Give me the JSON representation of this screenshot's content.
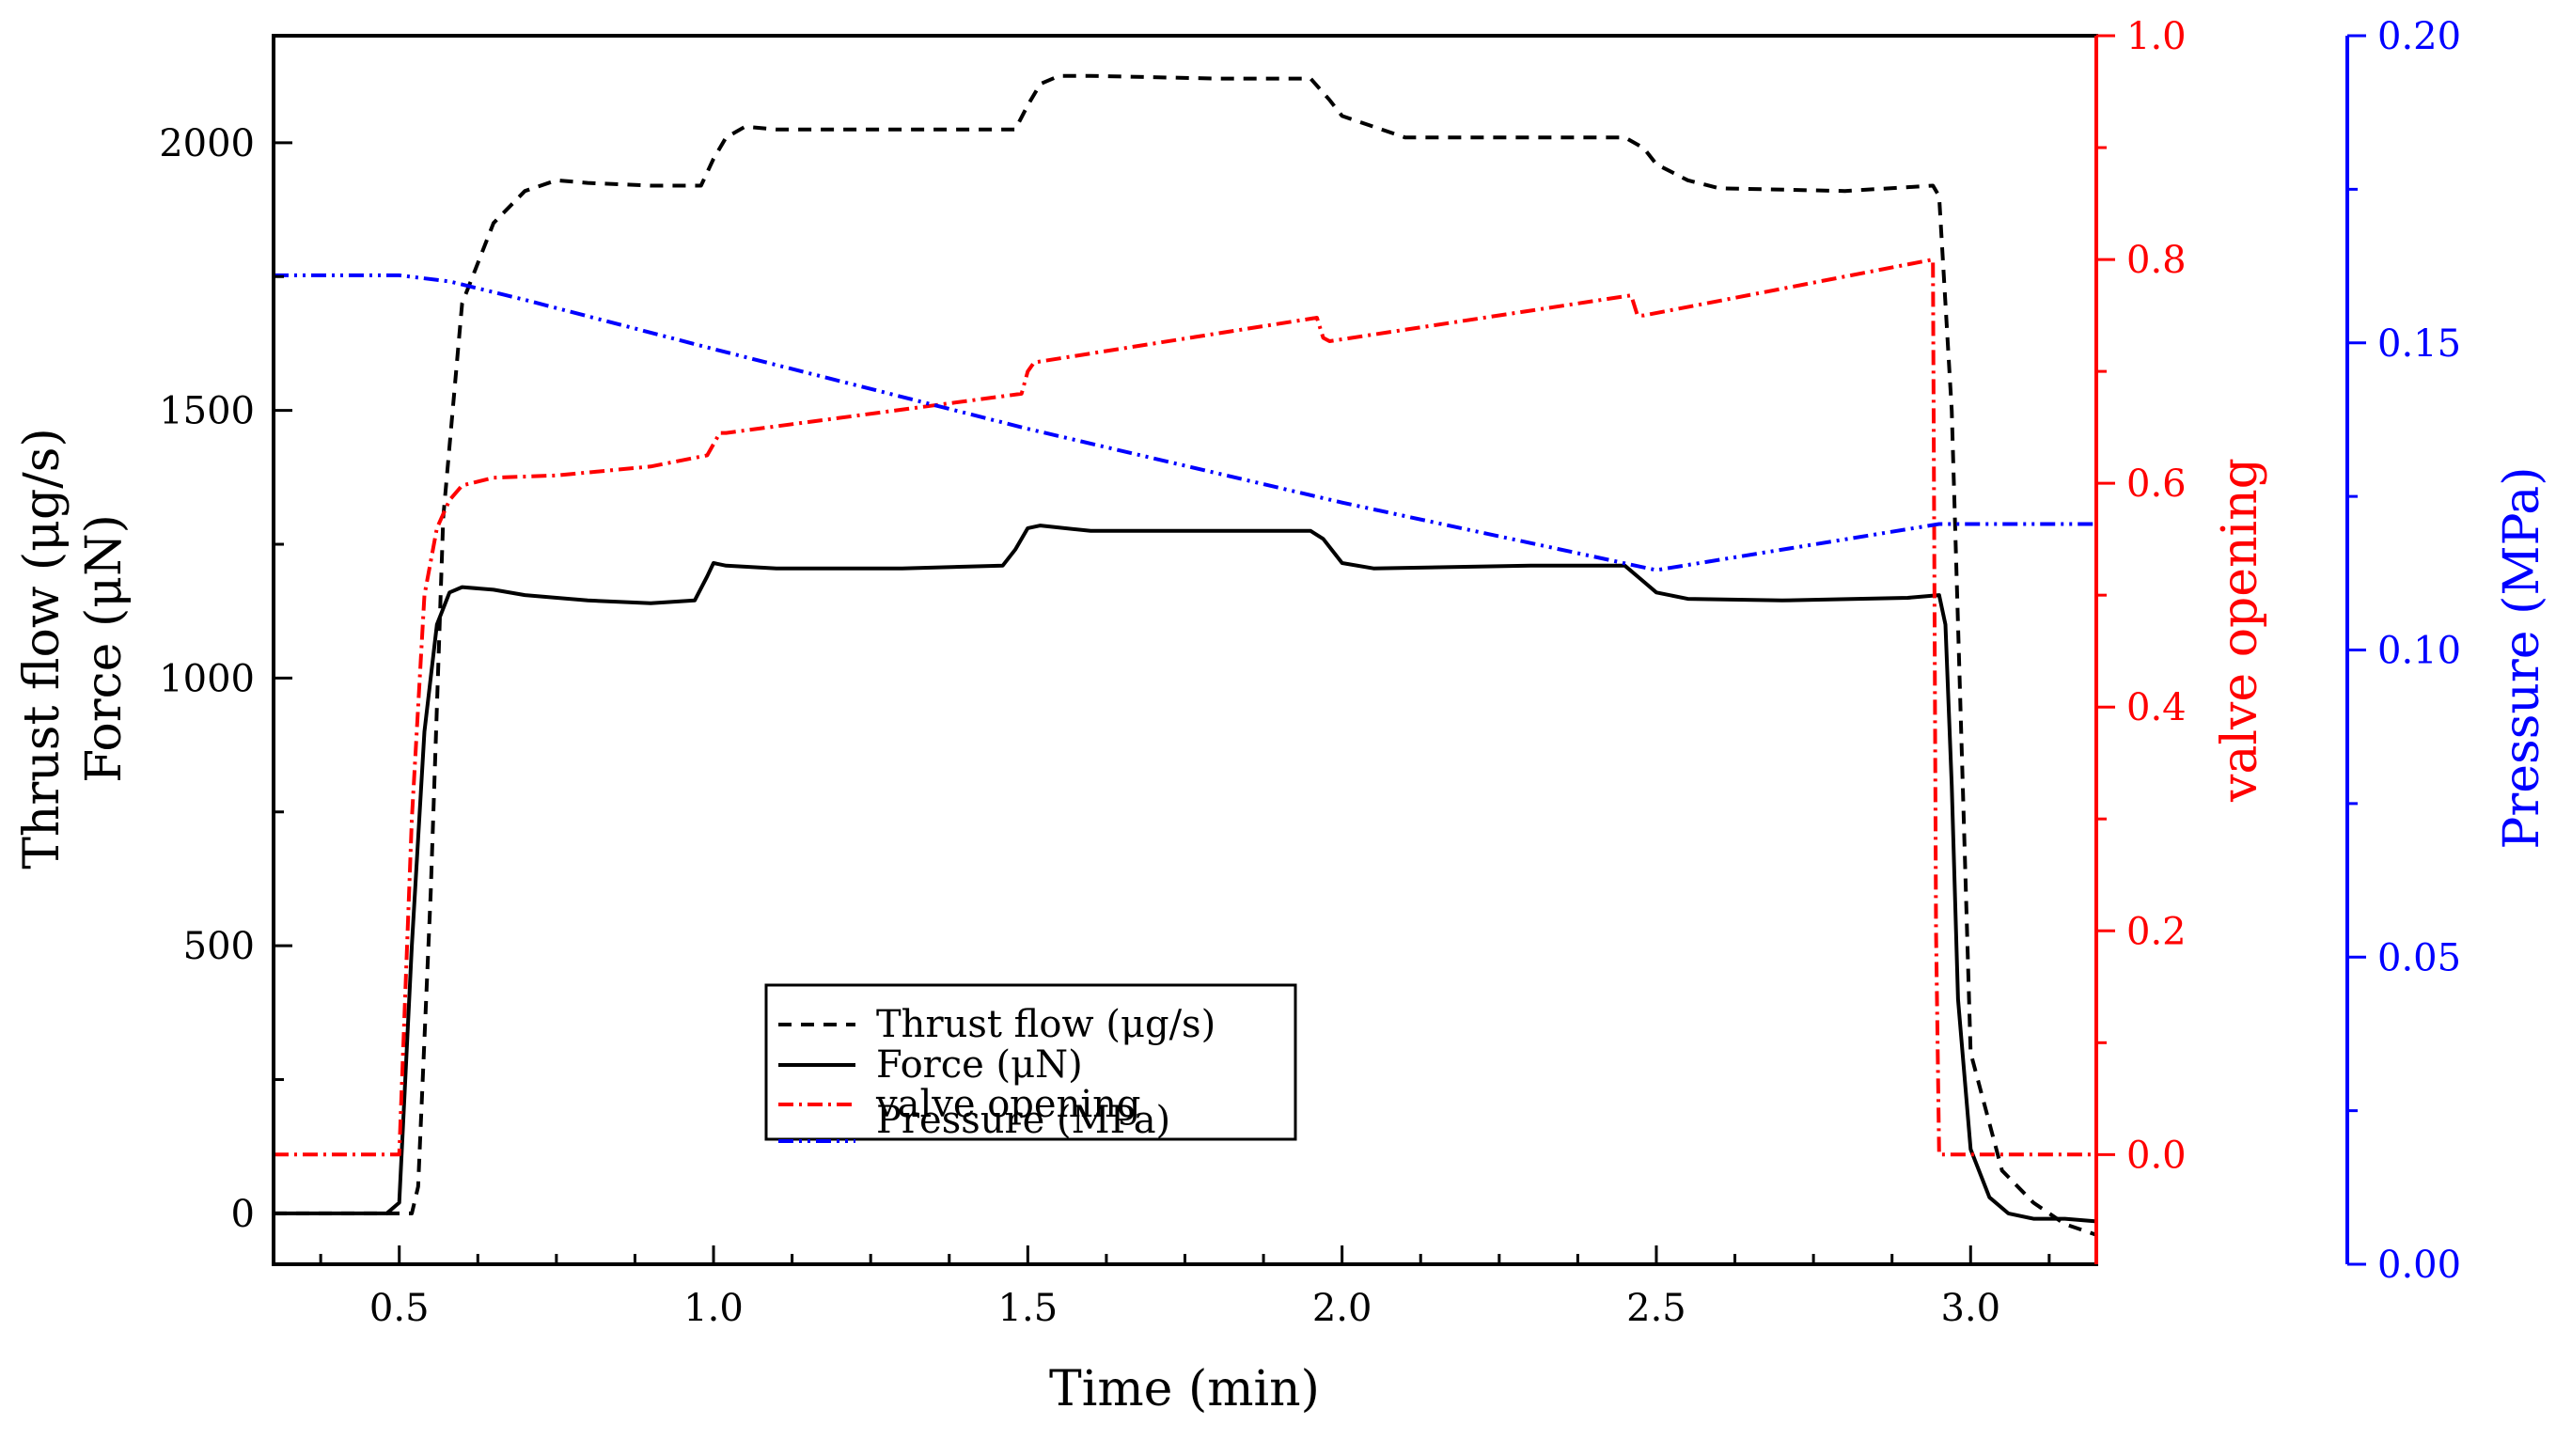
{
  "chart_data": {
    "type": "line",
    "title": "",
    "xlabel": "Time (min)",
    "xlim": [
      0.3,
      3.2
    ],
    "xticks": [
      0.5,
      1.0,
      1.5,
      2.0,
      2.5,
      3.0
    ],
    "xtick_labels": [
      "0.5",
      "1.0",
      "1.5",
      "2.0",
      "2.5",
      "3.0"
    ],
    "y_left": {
      "label_line1": "Thrust flow (μg/s)",
      "label_line2": "Force (μN)",
      "ylim": [
        -95,
        2200
      ],
      "ticks": [
        0,
        500,
        1000,
        1500,
        2000
      ],
      "tick_labels": [
        "0",
        "500",
        "1000",
        "1500",
        "2000"
      ],
      "color": "#000000"
    },
    "y_right_red": {
      "label": "valve opening",
      "ylim": [
        -0.098,
        1.0
      ],
      "ticks": [
        0.0,
        0.2,
        0.4,
        0.6,
        0.8,
        1.0
      ],
      "tick_labels": [
        "0.0",
        "0.2",
        "0.4",
        "0.6",
        "0.8",
        "1.0"
      ],
      "color": "#ff0000"
    },
    "y_right_blue": {
      "label": "Pressure (MPa)",
      "ylim": [
        0.0,
        0.2
      ],
      "ticks": [
        0.0,
        0.05,
        0.1,
        0.15,
        0.2
      ],
      "tick_labels": [
        "0.00",
        "0.05",
        "0.10",
        "0.15",
        "0.20"
      ],
      "color": "#0000ff"
    },
    "legend_position": "lower-center",
    "series": [
      {
        "name": "Thrust flow (μg/s)",
        "axis": "left",
        "color": "#000000",
        "dash": "dashed",
        "x": [
          0.3,
          0.52,
          0.53,
          0.55,
          0.57,
          0.6,
          0.65,
          0.7,
          0.75,
          0.8,
          0.9,
          0.98,
          1.0,
          1.02,
          1.05,
          1.1,
          1.3,
          1.48,
          1.5,
          1.52,
          1.55,
          1.6,
          1.8,
          1.95,
          1.98,
          2.0,
          2.05,
          2.1,
          2.3,
          2.45,
          2.48,
          2.5,
          2.55,
          2.6,
          2.8,
          2.94,
          2.95,
          2.97,
          3.0,
          3.05,
          3.1,
          3.15,
          3.2
        ],
        "y": [
          0,
          0,
          50,
          600,
          1300,
          1700,
          1850,
          1910,
          1930,
          1925,
          1920,
          1920,
          1970,
          2010,
          2030,
          2025,
          2025,
          2025,
          2070,
          2110,
          2125,
          2125,
          2120,
          2120,
          2080,
          2050,
          2030,
          2010,
          2010,
          2010,
          1990,
          1960,
          1930,
          1915,
          1910,
          1920,
          1900,
          1500,
          300,
          80,
          20,
          -20,
          -40
        ]
      },
      {
        "name": "Force (μN)",
        "axis": "left",
        "color": "#000000",
        "dash": "solid",
        "x": [
          0.3,
          0.48,
          0.5,
          0.52,
          0.54,
          0.56,
          0.58,
          0.6,
          0.65,
          0.7,
          0.8,
          0.9,
          0.97,
          0.99,
          1.0,
          1.02,
          1.1,
          1.3,
          1.46,
          1.48,
          1.5,
          1.52,
          1.6,
          1.8,
          1.95,
          1.97,
          2.0,
          2.05,
          2.3,
          2.45,
          2.48,
          2.5,
          2.55,
          2.7,
          2.9,
          2.95,
          2.96,
          2.97,
          2.98,
          3.0,
          3.03,
          3.06,
          3.1,
          3.15,
          3.2
        ],
        "y": [
          0,
          0,
          20,
          500,
          900,
          1100,
          1160,
          1170,
          1165,
          1155,
          1145,
          1140,
          1145,
          1190,
          1215,
          1210,
          1205,
          1205,
          1210,
          1240,
          1280,
          1285,
          1275,
          1275,
          1275,
          1260,
          1215,
          1205,
          1210,
          1210,
          1180,
          1160,
          1148,
          1145,
          1150,
          1155,
          1100,
          800,
          400,
          120,
          30,
          0,
          -10,
          -10,
          -15
        ]
      },
      {
        "name": "valve opening",
        "axis": "right_red",
        "color": "#ff0000",
        "dash": "dashdot",
        "x": [
          0.3,
          0.5,
          0.52,
          0.54,
          0.56,
          0.58,
          0.6,
          0.65,
          0.75,
          0.9,
          0.99,
          1.0,
          1.01,
          1.02,
          1.49,
          1.5,
          1.51,
          1.96,
          1.97,
          1.98,
          2.46,
          2.47,
          2.48,
          2.94,
          2.945,
          2.95,
          3.2
        ],
        "y": [
          0.0,
          0.0,
          0.3,
          0.5,
          0.56,
          0.585,
          0.598,
          0.605,
          0.607,
          0.615,
          0.625,
          0.635,
          0.645,
          0.645,
          0.68,
          0.7,
          0.708,
          0.748,
          0.73,
          0.727,
          0.768,
          0.75,
          0.75,
          0.8,
          0.2,
          0.0,
          0.0
        ]
      },
      {
        "name": "Pressure (MPa)",
        "axis": "right_blue",
        "color": "#0000ff",
        "dash": "dashdotdot",
        "x": [
          0.3,
          0.5,
          0.58,
          0.7,
          1.0,
          1.5,
          2.0,
          2.5,
          2.95,
          3.2
        ],
        "y": [
          0.161,
          0.161,
          0.16,
          0.157,
          0.149,
          0.136,
          0.124,
          0.113,
          0.1205,
          0.1205
        ]
      }
    ]
  }
}
